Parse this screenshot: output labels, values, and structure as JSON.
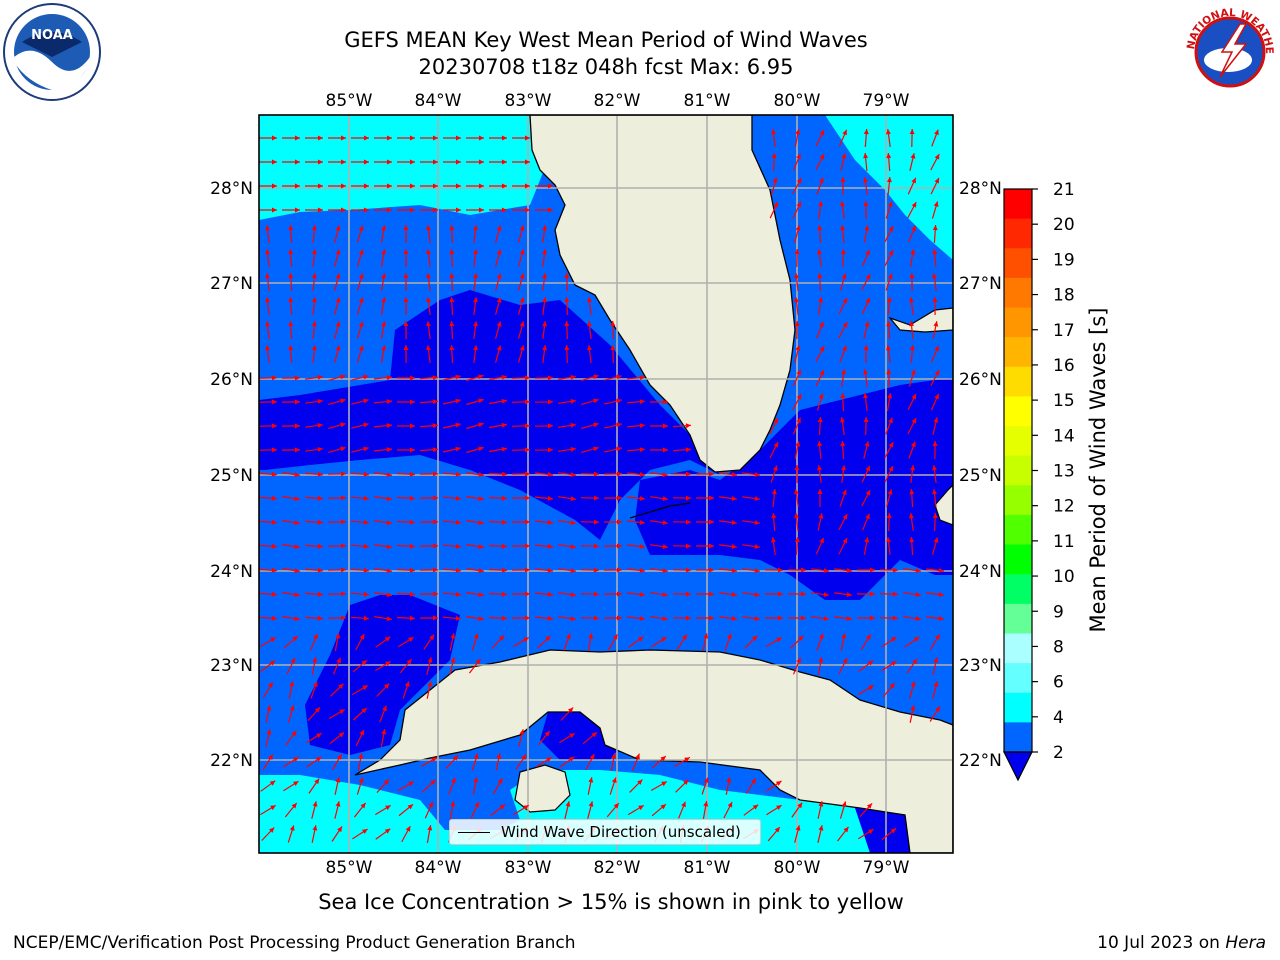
{
  "header": {
    "title_line1": "GEFS MEAN Key West Mean Period of Wind Waves",
    "title_line2": "20230708 t18z 048h fcst   Max: 6.95"
  },
  "logos": {
    "left": {
      "name": "noaa-logo",
      "text": "NOAA"
    },
    "right": {
      "name": "nws-logo",
      "text": "NATIONAL WEATHER SERVICE"
    }
  },
  "map": {
    "lon_labels": [
      "85°W",
      "84°W",
      "83°W",
      "82°W",
      "81°W",
      "80°W",
      "79°W"
    ],
    "lat_labels": [
      "28°N",
      "27°N",
      "26°N",
      "25°N",
      "24°N",
      "23°N",
      "22°N"
    ],
    "legend_label": "Wind Wave Direction (unscaled)",
    "colors": {
      "land": "#eeeedd",
      "level_2_4": "#0066ff",
      "level_4_6": "#00ffff",
      "below_2": "#0000ee",
      "vectors": "#ff0000"
    }
  },
  "colorbar": {
    "label": "Mean Period of Wind Waves [s]",
    "ticks": [
      "21",
      "20",
      "19",
      "18",
      "17",
      "16",
      "15",
      "14",
      "13",
      "12",
      "11",
      "10",
      "9",
      "8",
      "6",
      "4",
      "2"
    ],
    "colors": [
      "#ff0000",
      "#ff2800",
      "#ff5000",
      "#ff7800",
      "#ff9600",
      "#ffb400",
      "#ffdc00",
      "#ffff00",
      "#e6ff00",
      "#c8ff00",
      "#96ff00",
      "#50ff00",
      "#00ff00",
      "#00ff64",
      "#64ff96",
      "#aaffff",
      "#64ffff",
      "#00ffff",
      "#0066ff"
    ]
  },
  "footer": {
    "subtitle": "Sea Ice Concentration > 15% is shown in pink to yellow",
    "left": "NCEP/EMC/Verification Post Processing Product Generation Branch",
    "date": "10 Jul 2023 on",
    "machine": "Hera"
  }
}
